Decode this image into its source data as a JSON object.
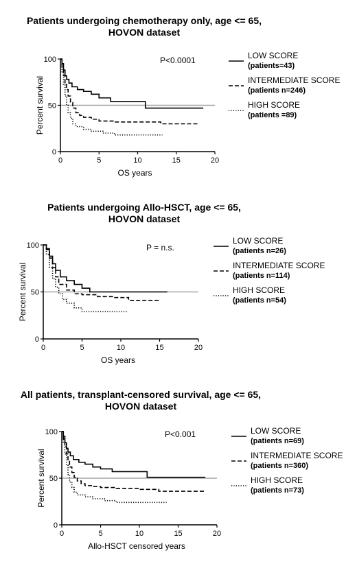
{
  "chart_data": [
    {
      "type": "line",
      "title_line1": "Patients undergoing chemotherapy only, age <= 65,",
      "title_line2": "HOVON dataset",
      "xlabel": "OS years",
      "ylabel": "Percent survival",
      "xlim": [
        0,
        20
      ],
      "ylim": [
        0,
        100
      ],
      "xticks": [
        "0",
        "5",
        "10",
        "15",
        "20"
      ],
      "yticks": [
        "0",
        "50",
        "100"
      ],
      "reference_line": 50,
      "pvalue": "P<0.0001",
      "series": [
        {
          "name": "LOW SCORE",
          "count": "(patients=43)",
          "style": "solid",
          "x": [
            0,
            0.2,
            0.4,
            0.6,
            0.8,
            1.1,
            1.5,
            2.2,
            3.0,
            4.0,
            5.0,
            6.5,
            11.0,
            18.5
          ],
          "y": [
            100,
            95,
            88,
            82,
            78,
            74,
            70,
            67,
            65,
            62,
            58,
            54,
            47,
            47
          ]
        },
        {
          "name": "INTERMEDIATE SCORE",
          "count": "(patients n=246)",
          "style": "dash",
          "x": [
            0,
            0.2,
            0.4,
            0.6,
            0.8,
            1.0,
            1.3,
            1.6,
            2.0,
            2.5,
            3.0,
            4.0,
            5.0,
            7.0,
            10.0,
            13.0,
            18.0
          ],
          "y": [
            100,
            90,
            82,
            74,
            67,
            60,
            53,
            47,
            42,
            39,
            37,
            35,
            33,
            32,
            32,
            30,
            30
          ]
        },
        {
          "name": "HIGH SCORE",
          "count": "(patients =89)",
          "style": "dot",
          "x": [
            0,
            0.2,
            0.4,
            0.6,
            0.8,
            1.0,
            1.3,
            1.6,
            2.0,
            3.0,
            4.0,
            5.5,
            7.0,
            13.2
          ],
          "y": [
            100,
            85,
            72,
            60,
            50,
            42,
            36,
            30,
            27,
            24,
            22,
            20,
            18,
            18
          ]
        }
      ]
    },
    {
      "type": "line",
      "title_line1": "Patients undergoing Allo-HSCT, age <= 65,",
      "title_line2": "HOVON dataset",
      "xlabel": "OS years",
      "ylabel": "Percent survival",
      "xlim": [
        0,
        20
      ],
      "ylim": [
        0,
        100
      ],
      "xticks": [
        "0",
        "5",
        "10",
        "15",
        "20"
      ],
      "yticks": [
        "0",
        "50",
        "100"
      ],
      "reference_line": 50,
      "pvalue": "P  = n.s.",
      "series": [
        {
          "name": "LOW SCORE",
          "count": "(patients n=26)",
          "style": "solid",
          "x": [
            0,
            0.4,
            0.8,
            1.2,
            1.6,
            2.2,
            3.0,
            4.0,
            5.0,
            6.0,
            16.0
          ],
          "y": [
            100,
            96,
            88,
            80,
            73,
            66,
            62,
            58,
            54,
            50,
            50
          ]
        },
        {
          "name": "INTERMEDIATE SCORE",
          "count": "(patients n=114)",
          "style": "dash",
          "x": [
            0,
            0.4,
            0.8,
            1.2,
            1.6,
            2.0,
            3.0,
            4.0,
            5.0,
            7.0,
            9.0,
            11.0,
            13.0,
            15.0
          ],
          "y": [
            100,
            95,
            86,
            76,
            66,
            58,
            52,
            48,
            47,
            45,
            44,
            41,
            41,
            41
          ]
        },
        {
          "name": "HIGH SCORE",
          "count": "(patients n=54)",
          "style": "dot",
          "x": [
            0,
            0.4,
            0.8,
            1.2,
            1.6,
            2.0,
            2.5,
            3.0,
            4.0,
            5.0,
            10.8
          ],
          "y": [
            100,
            90,
            76,
            64,
            55,
            48,
            42,
            38,
            33,
            29,
            29
          ]
        }
      ]
    },
    {
      "type": "line",
      "title_line1": "All patients, transplant-censored survival, age <= 65,",
      "title_line2": "HOVON dataset",
      "xlabel": "Allo-HSCT censored years",
      "ylabel": "Percent survival",
      "xlim": [
        0,
        20
      ],
      "ylim": [
        0,
        100
      ],
      "xticks": [
        "0",
        "5",
        "10",
        "15",
        "20"
      ],
      "yticks": [
        "0",
        "50",
        "100"
      ],
      "reference_line": 50,
      "pvalue": "P<0.001",
      "series": [
        {
          "name": "LOW SCORE",
          "count": "(patients n=69)",
          "style": "solid",
          "x": [
            0,
            0.2,
            0.4,
            0.6,
            0.8,
            1.1,
            1.5,
            2.2,
            3.0,
            4.0,
            5.0,
            6.5,
            11.0,
            18.5
          ],
          "y": [
            100,
            95,
            88,
            82,
            78,
            74,
            70,
            67,
            65,
            62,
            60,
            57,
            51,
            51
          ]
        },
        {
          "name": "INTERMEDIATE SCORE",
          "count": "(patients n=360)",
          "style": "dash",
          "x": [
            0,
            0.2,
            0.4,
            0.6,
            0.8,
            1.0,
            1.3,
            1.6,
            2.0,
            2.5,
            3.0,
            4.0,
            5.0,
            7.0,
            10.0,
            12.5,
            18.5
          ],
          "y": [
            100,
            92,
            84,
            76,
            69,
            62,
            56,
            51,
            47,
            44,
            42,
            41,
            40,
            39,
            38,
            36,
            36
          ]
        },
        {
          "name": "HIGH SCORE",
          "count": "(patients n=73)",
          "style": "dot",
          "x": [
            0,
            0.2,
            0.4,
            0.6,
            0.8,
            1.0,
            1.3,
            1.6,
            2.0,
            3.0,
            4.0,
            5.5,
            7.0,
            13.5
          ],
          "y": [
            100,
            88,
            76,
            64,
            54,
            46,
            40,
            35,
            32,
            30,
            28,
            26,
            24,
            24
          ]
        }
      ]
    }
  ]
}
